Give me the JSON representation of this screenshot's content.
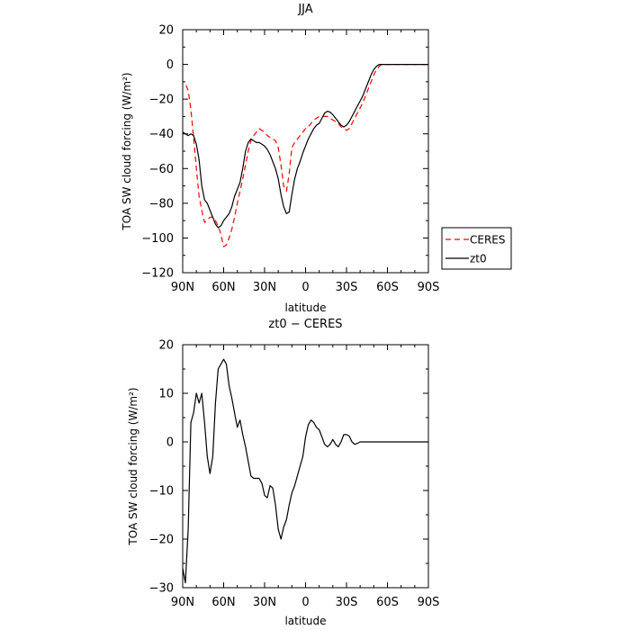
{
  "chart_data": [
    {
      "type": "line",
      "title": "JJA",
      "xlabel": "latitude",
      "ylabel": "TOA SW cloud forcing (W/m²)",
      "xlim": [
        90,
        -90
      ],
      "ylim": [
        -120,
        20
      ],
      "xticks": [
        90,
        60,
        30,
        0,
        -30,
        -60,
        -90
      ],
      "xtick_labels": [
        "90N",
        "60N",
        "30N",
        "0",
        "30S",
        "60S",
        "90S"
      ],
      "yticks": [
        20,
        0,
        -20,
        -40,
        -60,
        -80,
        -100,
        -120
      ],
      "ytick_labels": [
        "20",
        "0",
        "−20",
        "−40",
        "−60",
        "−80",
        "−100",
        "−120"
      ],
      "legend_position": "right",
      "series": [
        {
          "name": "CERES",
          "color": "#ff0000",
          "dash": "dashed",
          "x": [
            87.5,
            86,
            84,
            82,
            80,
            78,
            76,
            74,
            72,
            70,
            68,
            66,
            64,
            62,
            60,
            58,
            56,
            54,
            52,
            50,
            48,
            46,
            44,
            42,
            40,
            38,
            36,
            34,
            32,
            30,
            28,
            26,
            24,
            22,
            20,
            18,
            16,
            14,
            12,
            10,
            8,
            6,
            4,
            2,
            0,
            -2,
            -4,
            -6,
            -8,
            -10,
            -12,
            -14,
            -16,
            -18,
            -20,
            -22,
            -24,
            -26,
            -28,
            -30,
            -32,
            -34,
            -36,
            -38,
            -40,
            -42,
            -44,
            -46,
            -48,
            -50,
            -52,
            -54,
            -56,
            -58,
            -60,
            -62,
            -64,
            -66,
            -68,
            -70,
            -72,
            -74,
            -76,
            -78,
            -80,
            -82,
            -84,
            -86,
            -88
          ],
          "y": [
            -12,
            -15,
            -26,
            -42,
            -60,
            -76,
            -84,
            -91,
            -90,
            -88,
            -88,
            -90,
            -93,
            -98,
            -105,
            -104,
            -100,
            -95,
            -88,
            -80,
            -73,
            -66,
            -58,
            -50,
            -44,
            -41,
            -39,
            -37,
            -38,
            -39,
            -41,
            -42,
            -43,
            -44,
            -48,
            -58,
            -70,
            -73,
            -63,
            -48,
            -45,
            -43,
            -41,
            -39,
            -37,
            -36,
            -34,
            -32,
            -31,
            -30,
            -30,
            -30,
            -30,
            -31,
            -32,
            -33,
            -34,
            -36,
            -37,
            -38,
            -37,
            -34,
            -31,
            -28,
            -25,
            -22,
            -18,
            -14,
            -10,
            -6,
            -3,
            -1,
            0,
            0,
            0,
            0,
            0,
            0,
            0,
            0,
            0,
            0,
            0,
            0,
            0,
            0,
            0,
            0,
            0
          ]
        },
        {
          "name": "zt0",
          "color": "#000000",
          "dash": "solid",
          "x": [
            90,
            88,
            86,
            84,
            82,
            80,
            78,
            76,
            74,
            72,
            70,
            68,
            66,
            64,
            62,
            60,
            58,
            56,
            54,
            52,
            50,
            48,
            46,
            44,
            42,
            40,
            38,
            36,
            34,
            32,
            30,
            28,
            26,
            24,
            22,
            20,
            18,
            16,
            14,
            12,
            10,
            8,
            6,
            4,
            2,
            0,
            -2,
            -4,
            -6,
            -8,
            -10,
            -12,
            -14,
            -16,
            -18,
            -20,
            -22,
            -24,
            -26,
            -28,
            -30,
            -32,
            -34,
            -36,
            -38,
            -40,
            -42,
            -44,
            -46,
            -48,
            -50,
            -52,
            -54,
            -56,
            -58,
            -60,
            -62,
            -64,
            -66,
            -68,
            -70,
            -72,
            -74,
            -76,
            -78,
            -80,
            -82,
            -84,
            -86,
            -88,
            -90
          ],
          "y": [
            -39,
            -40,
            -41,
            -40,
            -41,
            -46,
            -55,
            -70,
            -78,
            -80,
            -84,
            -88,
            -92,
            -94,
            -93,
            -90,
            -88,
            -86,
            -82,
            -76,
            -72,
            -68,
            -60,
            -50,
            -45,
            -43,
            -44,
            -45,
            -45,
            -46,
            -47,
            -49,
            -52,
            -56,
            -60,
            -66,
            -75,
            -82,
            -86,
            -85,
            -75,
            -66,
            -60,
            -56,
            -51,
            -47,
            -43,
            -40,
            -37,
            -35,
            -34,
            -31,
            -28,
            -27,
            -27.5,
            -29,
            -31,
            -33,
            -35,
            -36,
            -35,
            -33,
            -30,
            -27,
            -24,
            -21,
            -18,
            -14,
            -10,
            -6,
            -3,
            -1,
            0,
            0,
            0,
            0,
            0,
            0,
            0,
            0,
            0,
            0,
            0,
            0,
            0,
            0,
            0,
            0,
            0,
            0,
            0
          ]
        }
      ]
    },
    {
      "type": "line",
      "title": "zt0 − CERES",
      "xlabel": "latitude",
      "ylabel": "TOA SW cloud forcing (W/m²)",
      "xlim": [
        90,
        -90
      ],
      "ylim": [
        -30,
        20
      ],
      "xticks": [
        90,
        60,
        30,
        0,
        -30,
        -60,
        -90
      ],
      "xtick_labels": [
        "90N",
        "60N",
        "30N",
        "0",
        "30S",
        "60S",
        "90S"
      ],
      "yticks": [
        20,
        10,
        0,
        -10,
        -20,
        -30
      ],
      "ytick_labels": [
        "20",
        "10",
        "0",
        "−10",
        "−20",
        "−30"
      ],
      "series": [
        {
          "name": "",
          "color": "#000000",
          "dash": "solid",
          "x": [
            90,
            88,
            86,
            84,
            82,
            80,
            78,
            76,
            74,
            72,
            70,
            68,
            66,
            64,
            62,
            60,
            58,
            56,
            54,
            52,
            50,
            48,
            46,
            44,
            42,
            40,
            38,
            36,
            34,
            32,
            30,
            28,
            26,
            24,
            22,
            20,
            18,
            16,
            14,
            12,
            10,
            8,
            6,
            4,
            2,
            0,
            -2,
            -4,
            -6,
            -8,
            -10,
            -12,
            -14,
            -16,
            -18,
            -20,
            -22,
            -24,
            -26,
            -28,
            -30,
            -32,
            -34,
            -36,
            -38,
            -40,
            -42,
            -44,
            -46,
            -48,
            -50,
            -52,
            -54,
            -56,
            -58,
            -60,
            -62,
            -64,
            -66,
            -68,
            -70,
            -72,
            -74,
            -76,
            -78,
            -80,
            -82,
            -84,
            -86,
            -88,
            -90
          ],
          "y": [
            -26,
            -29,
            -18,
            4,
            6,
            10,
            8,
            10,
            4,
            -3,
            -6.5,
            -3,
            8,
            15,
            16,
            17,
            16,
            11.5,
            9,
            6,
            3,
            4.5,
            1.5,
            -1,
            -4,
            -7,
            -7.5,
            -7.5,
            -7.5,
            -8.5,
            -11,
            -11.5,
            -9,
            -9.5,
            -13,
            -18,
            -20,
            -17.5,
            -16,
            -13,
            -10.5,
            -9,
            -7,
            -5,
            -3,
            1,
            3.5,
            4.5,
            4,
            3,
            2.5,
            1,
            -0.5,
            -1,
            -0.5,
            0.5,
            -0.5,
            -1,
            0,
            1.5,
            1.5,
            1.2,
            0,
            -0.5,
            -0.3,
            0,
            0,
            0,
            0,
            0,
            0,
            0,
            0,
            0,
            0,
            0,
            0,
            0,
            0,
            0,
            0,
            0,
            0,
            0,
            0,
            0,
            0,
            0,
            0,
            0,
            0
          ]
        }
      ]
    }
  ]
}
